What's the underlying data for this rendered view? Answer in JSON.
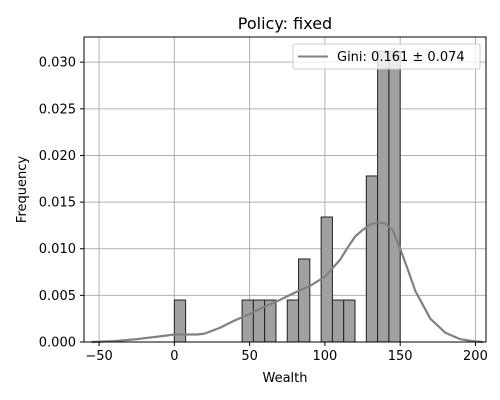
{
  "chart_data": {
    "type": "bar",
    "title": "Policy: fixed",
    "xlabel": "Wealth",
    "ylabel": "Frequency",
    "xlim": [
      -60,
      207
    ],
    "ylim": [
      0,
      0.0327
    ],
    "xticks": [
      -50,
      0,
      50,
      100,
      150,
      200
    ],
    "xtick_labels": [
      "−50",
      "0",
      "50",
      "100",
      "150",
      "200"
    ],
    "yticks": [
      0,
      0.005,
      0.01,
      0.015,
      0.02,
      0.025,
      0.03
    ],
    "ytick_labels": [
      "0.000",
      "0.005",
      "0.010",
      "0.015",
      "0.020",
      "0.025",
      "0.030"
    ],
    "grid": true,
    "legend_position": "top-right",
    "histogram": {
      "bin_width": 7.5,
      "bins": [
        {
          "x0": 0,
          "x1": 7.5,
          "value": 0.0045
        },
        {
          "x0": 45,
          "x1": 52.5,
          "value": 0.0045
        },
        {
          "x0": 52.5,
          "x1": 60,
          "value": 0.0045
        },
        {
          "x0": 60,
          "x1": 67.5,
          "value": 0.0045
        },
        {
          "x0": 75,
          "x1": 82.5,
          "value": 0.0045
        },
        {
          "x0": 82.5,
          "x1": 90,
          "value": 0.0089
        },
        {
          "x0": 97.5,
          "x1": 105,
          "value": 0.0134
        },
        {
          "x0": 105,
          "x1": 112.5,
          "value": 0.0045
        },
        {
          "x0": 112.5,
          "x1": 120,
          "value": 0.0045
        },
        {
          "x0": 127.5,
          "x1": 135,
          "value": 0.0178
        },
        {
          "x0": 135,
          "x1": 142.5,
          "value": 0.0312
        },
        {
          "x0": 142.5,
          "x1": 150,
          "value": 0.0312
        }
      ]
    },
    "kde": {
      "name": "Gini: 0.161 ± 0.074",
      "x": [
        -55,
        -40,
        -25,
        -15,
        -5,
        0,
        5,
        10,
        15,
        20,
        30,
        40,
        50,
        60,
        70,
        80,
        90,
        100,
        110,
        115,
        120,
        125,
        130,
        135,
        140,
        145,
        150,
        155,
        160,
        170,
        180,
        190,
        200,
        205
      ],
      "y": [
        0.0,
        0.0001,
        0.0003,
        0.0005,
        0.0007,
        0.0008,
        0.0008,
        0.0008,
        0.0008,
        0.0009,
        0.0015,
        0.0023,
        0.003,
        0.0038,
        0.0045,
        0.0053,
        0.006,
        0.007,
        0.0088,
        0.0101,
        0.0113,
        0.012,
        0.0126,
        0.0128,
        0.0127,
        0.012,
        0.01,
        0.0078,
        0.0055,
        0.0025,
        0.001,
        0.0003,
        5e-05,
        0.0
      ]
    },
    "colors": {
      "bar_fill": "#a0a0a0",
      "bar_edge": "#222222",
      "kde_line": "#808080",
      "grid": "#b0b0b0",
      "axis": "#000000"
    }
  }
}
